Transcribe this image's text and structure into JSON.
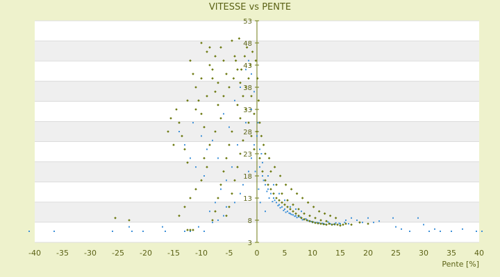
{
  "chart_data": {
    "type": "scatter",
    "title": "VITESSE vs PENTE",
    "xlabel": "Pente [%]",
    "ylabel": "",
    "xlim": [
      -40,
      40
    ],
    "ylim": [
      3,
      53
    ],
    "x_ticks": [
      -40,
      -35,
      -30,
      -25,
      -20,
      -15,
      -10,
      -5,
      0,
      5,
      10,
      15,
      20,
      25,
      30,
      35,
      40
    ],
    "y_tick_labels": [
      {
        "value": 53,
        "label": "53"
      },
      {
        "value": 48,
        "label": "48"
      },
      {
        "value": 43,
        "label": "43"
      },
      {
        "value": 38,
        "label": "38"
      },
      {
        "value": 33,
        "label": "33"
      },
      {
        "value": 28,
        "label": "28"
      },
      {
        "value": 23,
        "label": "23"
      },
      {
        "value": 18,
        "label": "18"
      },
      {
        "value": 13,
        "label": "13"
      },
      {
        "value": 8,
        "label": "8"
      },
      {
        "value": 3,
        "label": "3"
      }
    ],
    "grid": true,
    "series": [
      {
        "color": "#3b8fd8",
        "marker": "dot",
        "points": [
          [
            -41,
            5.5
          ],
          [
            -36.5,
            5.5
          ],
          [
            -26,
            5.5
          ],
          [
            -23,
            6.5
          ],
          [
            -22.5,
            5.5
          ],
          [
            -20.5,
            5.5
          ],
          [
            -17,
            6.5
          ],
          [
            -16.5,
            5.5
          ],
          [
            -13,
            5.5
          ],
          [
            -12,
            5.5
          ],
          [
            -10.5,
            6.5
          ],
          [
            -9.5,
            5.5
          ],
          [
            -8,
            7.5
          ],
          [
            -7,
            8
          ],
          [
            -6,
            9
          ],
          [
            -5.5,
            11
          ],
          [
            -4,
            12
          ],
          [
            -3,
            14
          ],
          [
            -2.5,
            16
          ],
          [
            -1.5,
            19
          ],
          [
            -1,
            22
          ],
          [
            -0.5,
            25
          ],
          [
            0,
            27
          ],
          [
            0.5,
            20
          ],
          [
            1,
            18
          ],
          [
            1.5,
            16
          ],
          [
            2,
            15
          ],
          [
            2.5,
            14
          ],
          [
            3,
            13
          ],
          [
            3.5,
            12
          ],
          [
            4,
            11.5
          ],
          [
            4.5,
            11
          ],
          [
            5,
            10.5
          ],
          [
            5.5,
            10
          ],
          [
            6,
            9.5
          ],
          [
            6.5,
            9.2
          ],
          [
            7,
            9
          ],
          [
            7.5,
            8.8
          ],
          [
            8,
            8.5
          ],
          [
            8.5,
            8.2
          ],
          [
            9,
            8
          ],
          [
            9.5,
            7.8
          ],
          [
            10,
            7.5
          ],
          [
            11,
            7.3
          ],
          [
            12,
            7.2
          ],
          [
            13,
            7.3
          ],
          [
            14,
            7
          ],
          [
            15,
            7.2
          ],
          [
            16,
            8
          ],
          [
            17,
            8.5
          ],
          [
            18,
            8
          ],
          [
            19,
            7.5
          ],
          [
            20,
            8.5
          ],
          [
            21,
            7.5
          ],
          [
            22,
            7.8
          ],
          [
            24.5,
            8.5
          ],
          [
            25,
            6.5
          ],
          [
            26,
            6
          ],
          [
            27.5,
            5.5
          ],
          [
            29,
            8.5
          ],
          [
            30,
            7
          ],
          [
            31,
            5.5
          ],
          [
            32,
            6
          ],
          [
            33,
            5.5
          ],
          [
            35,
            5.5
          ],
          [
            37,
            6
          ],
          [
            39.5,
            5.5
          ],
          [
            40.5,
            5.5
          ],
          [
            -14,
            28
          ],
          [
            -13,
            25
          ],
          [
            -12,
            22
          ],
          [
            -11.5,
            30
          ],
          [
            -11,
            20
          ],
          [
            -10,
            27
          ],
          [
            -9,
            24
          ],
          [
            -8,
            26
          ],
          [
            -7,
            22
          ],
          [
            -6,
            32
          ],
          [
            -5,
            29
          ],
          [
            -4,
            35
          ],
          [
            -3,
            38
          ],
          [
            -2,
            30
          ],
          [
            -1,
            33
          ],
          [
            -3.5,
            25
          ],
          [
            -4.5,
            20
          ],
          [
            -5.5,
            17
          ],
          [
            -6.5,
            15
          ],
          [
            -7.5,
            12
          ],
          [
            -8.5,
            10
          ],
          [
            -9.5,
            18
          ],
          [
            -2,
            42
          ],
          [
            -1.5,
            44
          ],
          [
            -1,
            41
          ],
          [
            -0.5,
            37
          ],
          [
            0.2,
            30
          ],
          [
            0.8,
            23
          ],
          [
            1.2,
            17
          ],
          [
            2.2,
            13
          ],
          [
            3.2,
            12.5
          ],
          [
            4.2,
            10.8
          ],
          [
            5.2,
            9.8
          ],
          [
            6.2,
            9.3
          ],
          [
            7.2,
            8.6
          ],
          [
            8.2,
            8.1
          ],
          [
            9.2,
            7.9
          ],
          [
            10.2,
            7.6
          ],
          [
            11.2,
            7.4
          ],
          [
            12.2,
            7.1
          ],
          [
            13.2,
            7.2
          ],
          [
            14.2,
            7.4
          ],
          [
            1.8,
            14.5
          ],
          [
            2.8,
            12.2
          ],
          [
            3.8,
            11.3
          ],
          [
            4.8,
            10.2
          ],
          [
            5.8,
            9.6
          ],
          [
            6.8,
            8.9
          ],
          [
            7.8,
            8.7
          ],
          [
            8.8,
            8.3
          ],
          [
            9.8,
            7.7
          ],
          [
            10.8,
            7.5
          ],
          [
            11.8,
            7.3
          ],
          [
            12.8,
            7.6
          ],
          [
            13.8,
            7.1
          ],
          [
            14.8,
            7.3
          ],
          [
            15.8,
            7.5
          ],
          [
            16.5,
            7.2
          ],
          [
            3,
            16
          ],
          [
            4,
            14
          ],
          [
            5,
            12.5
          ],
          [
            6,
            11
          ],
          [
            7,
            10.5
          ],
          [
            8,
            10
          ],
          [
            2,
            18
          ],
          [
            1,
            21
          ],
          [
            0.5,
            24
          ],
          [
            -0.3,
            19
          ],
          [
            0.3,
            15
          ],
          [
            0.6,
            12
          ],
          [
            1.5,
            10
          ]
        ]
      },
      {
        "color": "#6d7a12",
        "marker": "diamond",
        "points": [
          [
            -25.5,
            8.5
          ],
          [
            -23,
            8
          ],
          [
            -12.5,
            5.8
          ],
          [
            -12,
            5.8
          ],
          [
            -11.5,
            5.8
          ],
          [
            -15.5,
            31
          ],
          [
            -16,
            28
          ],
          [
            -15,
            25
          ],
          [
            -14.5,
            33
          ],
          [
            -14,
            30
          ],
          [
            -13.5,
            27
          ],
          [
            -13,
            24
          ],
          [
            -12.5,
            35
          ],
          [
            -12.5,
            21
          ],
          [
            -12,
            44
          ],
          [
            -11.5,
            41
          ],
          [
            -11,
            38
          ],
          [
            -10.5,
            35
          ],
          [
            -10,
            32
          ],
          [
            -10,
            48
          ],
          [
            -9.5,
            29
          ],
          [
            -9,
            46
          ],
          [
            -8.5,
            43
          ],
          [
            -8,
            40
          ],
          [
            -7.5,
            37
          ],
          [
            -7,
            34
          ],
          [
            -6.5,
            47
          ],
          [
            -6,
            44
          ],
          [
            -5.5,
            41
          ],
          [
            -5,
            38
          ],
          [
            -4.5,
            48.5
          ],
          [
            -4,
            45
          ],
          [
            -3.5,
            42
          ],
          [
            -3,
            39
          ],
          [
            -2.5,
            36
          ],
          [
            -2,
            33
          ],
          [
            -1.5,
            30
          ],
          [
            -1,
            27
          ],
          [
            -0.5,
            24
          ],
          [
            -4.5,
            28
          ],
          [
            -5,
            25
          ],
          [
            -5.5,
            22
          ],
          [
            -6,
            19
          ],
          [
            -6.5,
            16
          ],
          [
            -7,
            13
          ],
          [
            -7.5,
            10
          ],
          [
            -8,
            8
          ],
          [
            -3,
            31
          ],
          [
            -3.5,
            34
          ],
          [
            -2,
            38
          ],
          [
            -1.5,
            40
          ],
          [
            -1,
            36
          ],
          [
            -0.5,
            32
          ],
          [
            -2.5,
            26
          ],
          [
            -3,
            23
          ],
          [
            -3.5,
            20
          ],
          [
            -4,
            17
          ],
          [
            -4.5,
            14
          ],
          [
            -5,
            11
          ],
          [
            -5.5,
            9
          ],
          [
            -9,
            20
          ],
          [
            -10,
            17
          ],
          [
            -11,
            15
          ],
          [
            -12,
            13
          ],
          [
            -13,
            11
          ],
          [
            -14,
            9
          ],
          [
            -8.5,
            25
          ],
          [
            -9.5,
            22
          ],
          [
            -7.5,
            28
          ],
          [
            -6.5,
            31
          ],
          [
            0,
            28
          ],
          [
            0.5,
            22
          ],
          [
            1,
            19
          ],
          [
            1.5,
            17
          ],
          [
            2,
            16
          ],
          [
            2.5,
            15
          ],
          [
            3,
            14
          ],
          [
            3.5,
            13
          ],
          [
            4,
            12.5
          ],
          [
            4.5,
            12
          ],
          [
            5,
            11.5
          ],
          [
            5.5,
            11
          ],
          [
            6,
            10.5
          ],
          [
            6.5,
            10
          ],
          [
            7,
            9.5
          ],
          [
            7.5,
            9
          ],
          [
            8,
            8.5
          ],
          [
            8.5,
            8.2
          ],
          [
            9,
            8
          ],
          [
            9.5,
            7.8
          ],
          [
            10,
            7.6
          ],
          [
            10.5,
            7.4
          ],
          [
            11,
            7.3
          ],
          [
            11.5,
            7.2
          ],
          [
            12,
            7.1
          ],
          [
            12.5,
            7
          ],
          [
            13,
            7.2
          ],
          [
            13.5,
            7
          ],
          [
            14,
            7.1
          ],
          [
            14.5,
            7
          ],
          [
            15,
            6.8
          ],
          [
            15.5,
            7
          ],
          [
            16,
            7.2
          ],
          [
            17,
            7
          ],
          [
            18.5,
            7.5
          ],
          [
            20,
            7.2
          ],
          [
            1.2,
            25
          ],
          [
            2.2,
            22
          ],
          [
            3.2,
            20
          ],
          [
            4.2,
            18
          ],
          [
            5.2,
            16
          ],
          [
            6.2,
            15
          ],
          [
            7.2,
            14
          ],
          [
            8.2,
            13
          ],
          [
            9.2,
            12
          ],
          [
            10.2,
            11
          ],
          [
            11.2,
            10
          ],
          [
            12.2,
            9.5
          ],
          [
            13.2,
            9
          ],
          [
            14.2,
            8.5
          ],
          [
            0.5,
            30
          ],
          [
            0.8,
            27
          ],
          [
            1.5,
            23
          ],
          [
            2.5,
            19
          ],
          [
            3.5,
            16
          ],
          [
            4.5,
            14
          ],
          [
            5.5,
            12.5
          ],
          [
            6.5,
            11.5
          ],
          [
            7.5,
            10.5
          ],
          [
            8.5,
            9.5
          ],
          [
            9.5,
            9
          ],
          [
            10.5,
            8.5
          ],
          [
            11.5,
            8
          ],
          [
            12.5,
            7.8
          ],
          [
            0.3,
            35
          ],
          [
            0.1,
            40
          ],
          [
            -0.2,
            44
          ],
          [
            -0.8,
            46
          ],
          [
            -1.2,
            43
          ],
          [
            -1.8,
            47
          ],
          [
            -2.2,
            45
          ],
          [
            -2.8,
            42
          ],
          [
            -3.2,
            49
          ],
          [
            -3.8,
            44
          ],
          [
            -4.2,
            40
          ],
          [
            -6,
            36
          ],
          [
            -7,
            39
          ],
          [
            -8,
            42
          ],
          [
            -9,
            36
          ],
          [
            -10,
            40
          ],
          [
            -11,
            33
          ],
          [
            -7.5,
            45
          ],
          [
            -8.5,
            47
          ]
        ]
      }
    ]
  }
}
